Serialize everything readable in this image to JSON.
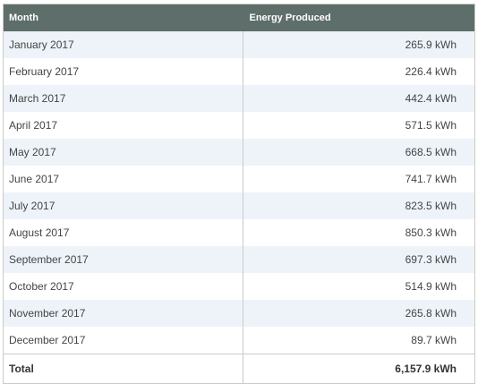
{
  "table": {
    "headers": [
      "Month",
      "Energy Produced"
    ],
    "rows": [
      {
        "month": "January 2017",
        "energy": "265.9 kWh"
      },
      {
        "month": "February 2017",
        "energy": "226.4 kWh"
      },
      {
        "month": "March 2017",
        "energy": "442.4 kWh"
      },
      {
        "month": "April 2017",
        "energy": "571.5 kWh"
      },
      {
        "month": "May 2017",
        "energy": "668.5 kWh"
      },
      {
        "month": "June 2017",
        "energy": "741.7 kWh"
      },
      {
        "month": "July 2017",
        "energy": "823.5 kWh"
      },
      {
        "month": "August 2017",
        "energy": "850.3 kWh"
      },
      {
        "month": "September 2017",
        "energy": "697.3 kWh"
      },
      {
        "month": "October 2017",
        "energy": "514.9 kWh"
      },
      {
        "month": "November 2017",
        "energy": "265.8 kWh"
      },
      {
        "month": "December 2017",
        "energy": "89.7 kWh"
      }
    ],
    "total": {
      "label": "Total",
      "energy": "6,157.9 kWh"
    }
  },
  "colors": {
    "header_bg": "#5e6e6a",
    "stripe_bg": "#eef3fa",
    "border": "#c9ccc3"
  }
}
